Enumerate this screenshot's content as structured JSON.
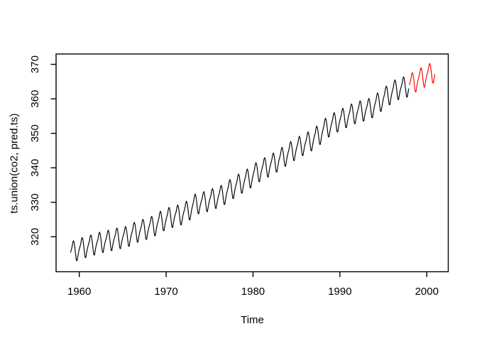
{
  "window": {
    "background": "#ffffff",
    "text_color": "#000000"
  },
  "chart_data": {
    "type": "line",
    "title": "",
    "xlabel": "Time",
    "ylabel": "ts.union(co2, pred.ts)",
    "x_ticks": [
      1960,
      1970,
      1980,
      1990,
      2000
    ],
    "y_ticks": [
      320,
      330,
      340,
      350,
      360,
      370
    ],
    "xlim": [
      1957.33,
      2002.47
    ],
    "ylim": [
      309.86,
      373.0
    ],
    "grid": false,
    "legend": "none",
    "frequency": 12,
    "seasonal_pattern": [
      -0.05,
      0.6,
      1.3,
      2.5,
      3.0,
      2.3,
      0.7,
      -1.3,
      -3.0,
      -3.2,
      -2.0,
      -0.9
    ],
    "series": [
      {
        "name": "co2",
        "color": "#000000",
        "start_year": 1959,
        "annual_means": [
          315.98,
          316.91,
          317.64,
          318.45,
          318.99,
          319.62,
          320.04,
          321.37,
          322.18,
          323.05,
          324.62,
          325.68,
          326.32,
          327.46,
          329.68,
          330.19,
          331.12,
          332.03,
          333.84,
          335.41,
          336.84,
          338.76,
          340.12,
          341.48,
          343.15,
          344.85,
          346.35,
          347.61,
          349.31,
          351.69,
          353.2,
          354.45,
          355.7,
          356.54,
          357.21,
          358.96,
          360.97,
          362.74,
          363.47
        ]
      },
      {
        "name": "pred.ts",
        "color": "#ff0000",
        "start_year": 1998,
        "annual_means": [
          364.8,
          366.2,
          367.4
        ]
      }
    ]
  }
}
